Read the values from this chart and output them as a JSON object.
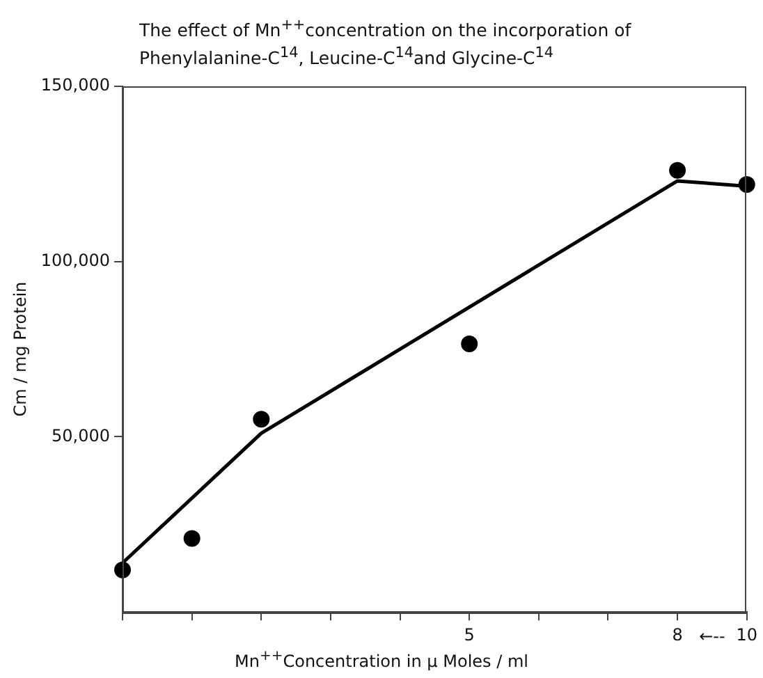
{
  "chart_data": {
    "type": "line",
    "title": "The effect of Mn$^{++}$concentration on the incorporation of Phenylalanine-C$^{14}$, Leucine-C$^{14}$and Glycine-C$^{14}$",
    "xlabel": "Mn$^{++}$Concentration in μ Moles / ml",
    "ylabel": "Cm / mg Protein",
    "categories": [
      null,
      null,
      null,
      null,
      null,
      "5",
      null,
      null,
      "8",
      "10"
    ],
    "series": [
      {
        "type": "line",
        "color": "#000000",
        "marker": "none",
        "values": [
          14000,
          null,
          51000,
          null,
          null,
          null,
          null,
          null,
          123000,
          121500
        ]
      },
      {
        "type": "scatter",
        "color": "#000000",
        "marker": "circle",
        "values": [
          12000,
          21000,
          55000,
          null,
          null,
          76500,
          null,
          null,
          126000,
          122000
        ]
      }
    ],
    "annotations": [
      "←--"
    ],
    "ylim": [
      0,
      150000
    ],
    "yticks": [
      {
        "value": 50000,
        "label": "50,000"
      },
      {
        "value": 100000,
        "label": "100,000"
      },
      {
        "value": 150000,
        "label": "150,000"
      }
    ],
    "grid": false,
    "legend": false
  }
}
